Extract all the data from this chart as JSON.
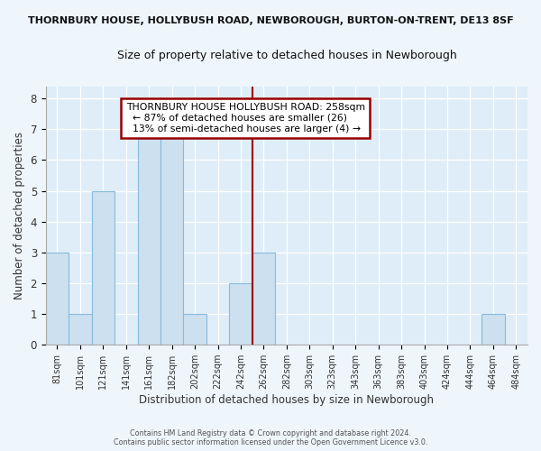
{
  "title": "THORNBURY HOUSE, HOLLYBUSH ROAD, NEWBOROUGH, BURTON-ON-TRENT, DE13 8SF",
  "subtitle": "Size of property relative to detached houses in Newborough",
  "xlabel": "Distribution of detached houses by size in Newborough",
  "ylabel": "Number of detached properties",
  "bar_labels": [
    "81sqm",
    "101sqm",
    "121sqm",
    "141sqm",
    "161sqm",
    "182sqm",
    "202sqm",
    "222sqm",
    "242sqm",
    "262sqm",
    "282sqm",
    "303sqm",
    "323sqm",
    "343sqm",
    "363sqm",
    "383sqm",
    "403sqm",
    "424sqm",
    "444sqm",
    "464sqm",
    "484sqm"
  ],
  "bar_heights": [
    3,
    1,
    5,
    0,
    7,
    7,
    1,
    0,
    2,
    3,
    0,
    0,
    0,
    0,
    0,
    0,
    0,
    0,
    0,
    1,
    0
  ],
  "bar_color": "#cce0f0",
  "bar_edge_color": "#88bbdd",
  "ylim": [
    0,
    8.4
  ],
  "yticks": [
    0,
    1,
    2,
    3,
    4,
    5,
    6,
    7,
    8
  ],
  "vline_x_idx": 9,
  "vline_color": "#990000",
  "annotation_title": "THORNBURY HOUSE HOLLYBUSH ROAD: 258sqm",
  "annotation_line1": "← 87% of detached houses are smaller (26)",
  "annotation_line2": "13% of semi-detached houses are larger (4) →",
  "footer1": "Contains HM Land Registry data © Crown copyright and database right 2024.",
  "footer2": "Contains public sector information licensed under the Open Government Licence v3.0.",
  "bg_color": "#eef5fb",
  "plot_bg_color": "#deedf8"
}
